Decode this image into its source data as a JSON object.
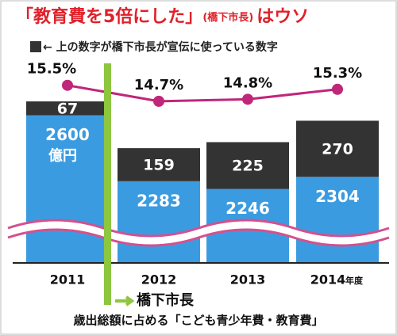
{
  "chart_data": {
    "type": "bar",
    "title": "「教育費を5倍にした」",
    "title_note": "(橋下市長)",
    "title_end": "はウソ",
    "legend_text": "← 上の数字が橋下市長が宣伝に使っている数字",
    "annotation": "橋下市長",
    "footer": "歳出総額に占める「こども青少年費・教育費」",
    "categories": [
      "2011",
      "2012",
      "2013",
      "2014"
    ],
    "category_unit": "年度",
    "value_unit": "億円",
    "ylim": [
      1890,
      2850
    ],
    "y2lim": [
      6.6,
      16.6
    ],
    "series": [
      {
        "color": "#3b9be0",
        "values": [
          2600,
          2283,
          2246,
          2304
        ]
      },
      {
        "color": "#333333",
        "values": [
          67,
          159,
          225,
          270
        ]
      },
      {
        "color": "#c0267a",
        "axis": "y2",
        "values": [
          15.5,
          14.7,
          14.8,
          15.3
        ],
        "value_labels": [
          "15.5%",
          "14.7%",
          "14.8%",
          "15.3%"
        ]
      }
    ]
  }
}
